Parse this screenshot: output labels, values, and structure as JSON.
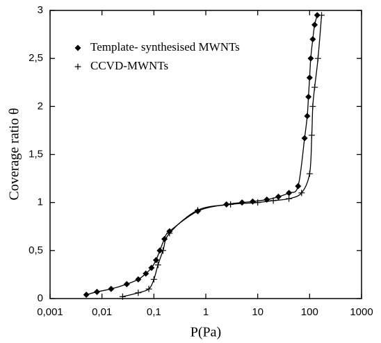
{
  "chart_data": {
    "type": "scatter",
    "x_label": "P(Pa)",
    "y_label": "Coverage ratio θ",
    "x_scale": "log",
    "xlim": [
      0.001,
      1000
    ],
    "ylim": [
      0,
      3
    ],
    "xticks": [
      {
        "value": 0.001,
        "label": "0,001"
      },
      {
        "value": 0.01,
        "label": "0,01"
      },
      {
        "value": 0.1,
        "label": "0,1"
      },
      1,
      10,
      100,
      1000
    ],
    "yticks": [
      0,
      {
        "value": 0.5,
        "label": "0,5"
      },
      1,
      {
        "value": 1.5,
        "label": "1,5"
      },
      2,
      {
        "value": 2.5,
        "label": "2,5"
      },
      3
    ],
    "legend": "top-left",
    "series": [
      {
        "name": "Template- synthesised MWNTs",
        "color": "#000000",
        "marker": "diamond",
        "line": true,
        "x": [
          0.005,
          0.008,
          0.015,
          0.03,
          0.05,
          0.07,
          0.09,
          0.11,
          0.13,
          0.16,
          0.2,
          0.7,
          2.5,
          5,
          8,
          15,
          25,
          40,
          60,
          80,
          90,
          95,
          100,
          105,
          115,
          125,
          140
        ],
        "values": [
          0.04,
          0.07,
          0.1,
          0.15,
          0.2,
          0.26,
          0.32,
          0.4,
          0.5,
          0.62,
          0.7,
          0.91,
          0.98,
          1.0,
          1.01,
          1.03,
          1.06,
          1.1,
          1.17,
          1.67,
          1.9,
          2.1,
          2.3,
          2.5,
          2.7,
          2.85,
          2.95
        ]
      },
      {
        "name": "CCVD-MWNTs",
        "color": "#000000",
        "marker": "plus",
        "line": true,
        "x": [
          0.025,
          0.05,
          0.08,
          0.1,
          0.12,
          0.15,
          0.2,
          0.7,
          3,
          10,
          20,
          40,
          70,
          100,
          110,
          115,
          125,
          145,
          170
        ],
        "values": [
          0.02,
          0.06,
          0.1,
          0.2,
          0.35,
          0.5,
          0.68,
          0.92,
          0.98,
          1.0,
          1.02,
          1.04,
          1.1,
          1.3,
          1.7,
          2.0,
          2.2,
          2.5,
          2.95
        ]
      }
    ]
  }
}
